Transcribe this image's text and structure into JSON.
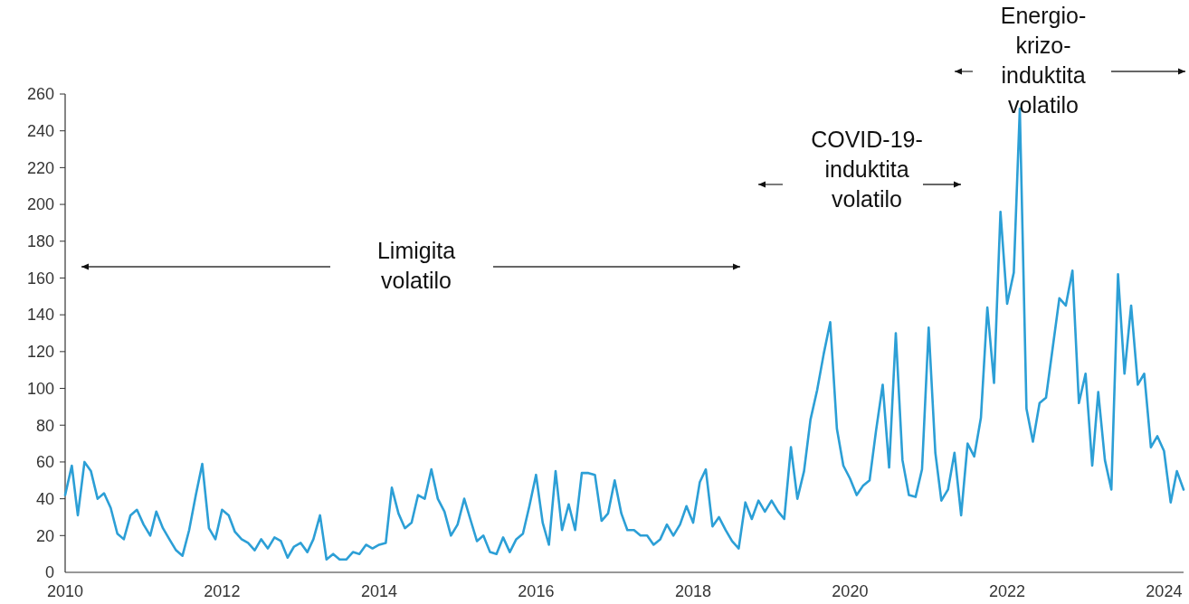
{
  "chart_data": {
    "type": "line",
    "x": [
      "2010-01",
      "2010-02",
      "2010-03",
      "2010-04",
      "2010-05",
      "2010-06",
      "2010-07",
      "2010-08",
      "2010-09",
      "2010-10",
      "2010-11",
      "2010-12",
      "2011-01",
      "2011-02",
      "2011-03",
      "2011-04",
      "2011-05",
      "2011-06",
      "2011-07",
      "2011-08",
      "2011-09",
      "2011-10",
      "2011-11",
      "2011-12",
      "2012-01",
      "2012-02",
      "2012-03",
      "2012-04",
      "2012-05",
      "2012-06",
      "2012-07",
      "2012-08",
      "2012-09",
      "2012-10",
      "2012-11",
      "2012-12",
      "2013-01",
      "2013-02",
      "2013-03",
      "2013-04",
      "2013-05",
      "2013-06",
      "2013-07",
      "2013-08",
      "2013-09",
      "2013-10",
      "2013-11",
      "2013-12",
      "2014-01",
      "2014-02",
      "2014-03",
      "2014-04",
      "2014-05",
      "2014-06",
      "2014-07",
      "2014-08",
      "2014-09",
      "2014-10",
      "2014-11",
      "2014-12",
      "2015-01",
      "2015-02",
      "2015-03",
      "2015-04",
      "2015-05",
      "2015-06",
      "2015-07",
      "2015-08",
      "2015-09",
      "2015-10",
      "2015-11",
      "2015-12",
      "2016-01",
      "2016-02",
      "2016-03",
      "2016-04",
      "2016-05",
      "2016-06",
      "2016-07",
      "2016-08",
      "2016-09",
      "2016-10",
      "2016-11",
      "2016-12",
      "2017-01",
      "2017-02",
      "2017-03",
      "2017-04",
      "2017-05",
      "2017-06",
      "2017-07",
      "2017-08",
      "2017-09",
      "2017-10",
      "2017-11",
      "2017-12",
      "2018-01",
      "2018-02",
      "2018-03",
      "2018-04",
      "2018-05",
      "2018-06",
      "2018-07",
      "2018-08",
      "2018-09",
      "2018-10",
      "2018-11",
      "2018-12",
      "2019-01",
      "2019-02",
      "2019-03",
      "2019-04",
      "2019-05",
      "2019-06",
      "2019-07",
      "2019-08",
      "2019-09",
      "2019-10",
      "2019-11",
      "2019-12",
      "2020-01",
      "2020-02",
      "2020-03",
      "2020-04",
      "2020-05",
      "2020-06",
      "2020-07",
      "2020-08",
      "2020-09",
      "2020-10",
      "2020-11",
      "2020-12",
      "2021-01",
      "2021-02",
      "2021-03",
      "2021-04",
      "2021-05",
      "2021-06",
      "2021-07",
      "2021-08",
      "2021-09",
      "2021-10",
      "2021-11",
      "2021-12",
      "2022-01",
      "2022-02",
      "2022-03",
      "2022-04",
      "2022-05",
      "2022-06",
      "2022-07",
      "2022-08",
      "2022-09",
      "2022-10",
      "2022-11",
      "2022-12",
      "2023-01",
      "2023-02",
      "2023-03",
      "2023-04",
      "2023-05",
      "2023-06",
      "2023-07",
      "2023-08",
      "2023-09",
      "2023-10",
      "2023-11",
      "2023-12",
      "2024-01",
      "2024-02",
      "2024-03",
      "2024-04"
    ],
    "series": [
      {
        "color": "#2c9fd6",
        "values": [
          42,
          58,
          31,
          60,
          55,
          40,
          43,
          35,
          21,
          18,
          31,
          34,
          26,
          20,
          33,
          24,
          18,
          12,
          9,
          23,
          42,
          59,
          24,
          18,
          34,
          31,
          22,
          18,
          16,
          12,
          18,
          13,
          19,
          17,
          8,
          14,
          16,
          11,
          18,
          31,
          7,
          10,
          7,
          7,
          11,
          10,
          15,
          13,
          15,
          16,
          46,
          32,
          24,
          27,
          42,
          40,
          56,
          40,
          33,
          20,
          26,
          40,
          29,
          17,
          20,
          11,
          10,
          19,
          11,
          18,
          21,
          36,
          53,
          27,
          15,
          55,
          23,
          37,
          23,
          54,
          54,
          53,
          28,
          32,
          50,
          32,
          23,
          23,
          20,
          20,
          15,
          18,
          26,
          20,
          26,
          36,
          27,
          49,
          56,
          25,
          30,
          23,
          17,
          13,
          38,
          29,
          39,
          33,
          39,
          33,
          29,
          68,
          40,
          55,
          83,
          99,
          119,
          136,
          78,
          58,
          51,
          42,
          47,
          50,
          77,
          102,
          57,
          130,
          61,
          42,
          41,
          56,
          133,
          65,
          39,
          45,
          65,
          31,
          70,
          63,
          84,
          144,
          103,
          196,
          146,
          163,
          252,
          89,
          71,
          92,
          95,
          122,
          149,
          145,
          164,
          92,
          108,
          58,
          98,
          61,
          45,
          162,
          108,
          145,
          102,
          108,
          68,
          74,
          66,
          38,
          55,
          45
        ]
      }
    ],
    "xlim": [
      "2010-01",
      "2024-04"
    ],
    "xticks": [
      {
        "value": "2010-01",
        "label": "2010"
      },
      {
        "value": "2012-01",
        "label": "2012"
      },
      {
        "value": "2014-01",
        "label": "2014"
      },
      {
        "value": "2016-01",
        "label": "2016"
      },
      {
        "value": "2018-01",
        "label": "2018"
      },
      {
        "value": "2020-01",
        "label": "2020"
      },
      {
        "value": "2022-01",
        "label": "2022"
      },
      {
        "value": "2024-01",
        "label": "2024"
      }
    ],
    "ylim": [
      0,
      260
    ],
    "yticks": [
      0,
      20,
      40,
      60,
      80,
      100,
      120,
      140,
      160,
      180,
      200,
      220,
      240,
      260
    ],
    "annotations": [
      "Limigita\nvolatilo",
      "COVID-19-\ninduktita\nvolatilo",
      "Energio-\nkrizo-\ninduktita\nvolatilo"
    ]
  }
}
